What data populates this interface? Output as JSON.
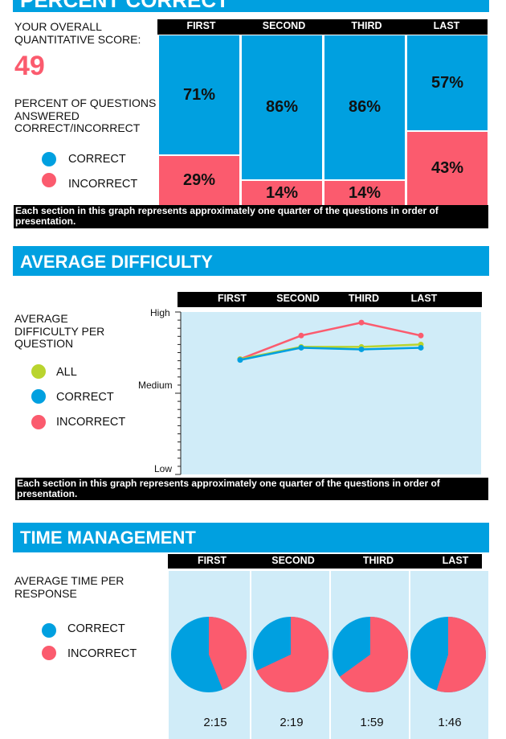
{
  "colors": {
    "blue": "#00a0e0",
    "red": "#fb5b6e",
    "lime": "#b9d42e",
    "panel": "#d0ecf8",
    "score": "#fb5b6e"
  },
  "percent_correct": {
    "banner_title": "PERCENT CORRECT",
    "score_label": "YOUR OVERALL QUANTITATIVE SCORE:",
    "score_value": "49",
    "questions_label": "PERCENT OF QUESTIONS ANSWERED CORRECT/INCORRECT",
    "legend": [
      {
        "label": "CORRECT",
        "color": "blue"
      },
      {
        "label": "INCORRECT",
        "color": "red"
      }
    ],
    "columns": [
      "FIRST",
      "SECOND",
      "THIRD",
      "LAST"
    ],
    "correct_labels": [
      "71%",
      "86%",
      "86%",
      "57%"
    ],
    "incorrect_labels": [
      "29%",
      "14%",
      "14%",
      "43%"
    ],
    "note": "Each section in this graph represents approximately one quarter of the questions in order of presentation."
  },
  "average_difficulty": {
    "banner_title": "AVERAGE DIFFICULTY",
    "label": "AVERAGE DIFFICULTY PER QUESTION",
    "legend": [
      {
        "label": "ALL",
        "color": "lime"
      },
      {
        "label": "CORRECT",
        "color": "blue"
      },
      {
        "label": "INCORRECT",
        "color": "red"
      }
    ],
    "columns": [
      "FIRST",
      "SECOND",
      "THIRD",
      "LAST"
    ],
    "y_labels": {
      "high": "High",
      "medium": "Medium",
      "low": "Low"
    },
    "note": "Each section in this graph represents approximately one quarter of the questions in order of presentation."
  },
  "time_management": {
    "banner_title": "TIME MANAGEMENT",
    "label": "AVERAGE TIME PER RESPONSE",
    "legend": [
      {
        "label": "CORRECT",
        "color": "blue"
      },
      {
        "label": "INCORRECT",
        "color": "red"
      }
    ],
    "columns": [
      "FIRST",
      "SECOND",
      "THIRD",
      "LAST"
    ],
    "times": [
      "2:15",
      "2:19",
      "1:59",
      "1:46"
    ]
  },
  "chart_data": [
    {
      "type": "bar",
      "stacked": true,
      "normalized": true,
      "categories": [
        "FIRST",
        "SECOND",
        "THIRD",
        "LAST"
      ],
      "series": [
        {
          "name": "CORRECT",
          "values": [
            71,
            86,
            86,
            57
          ]
        },
        {
          "name": "INCORRECT",
          "values": [
            29,
            14,
            14,
            43
          ]
        }
      ],
      "ylim": [
        0,
        100
      ]
    },
    {
      "type": "line",
      "categories": [
        "FIRST",
        "SECOND",
        "THIRD",
        "LAST"
      ],
      "y_scale": [
        "Low",
        "Medium",
        "High"
      ],
      "ylim": [
        0,
        1
      ],
      "series": [
        {
          "name": "ALL",
          "values": [
            0.71,
            0.785,
            0.785,
            0.8
          ]
        },
        {
          "name": "CORRECT",
          "values": [
            0.705,
            0.78,
            0.77,
            0.78
          ]
        },
        {
          "name": "INCORRECT",
          "values": [
            0.71,
            0.855,
            0.935,
            0.855
          ]
        }
      ]
    },
    {
      "type": "pie",
      "categories": [
        "FIRST",
        "SECOND",
        "THIRD",
        "LAST"
      ],
      "series": [
        {
          "name": "CORRECT",
          "values": [
            0.56,
            0.32,
            0.35,
            0.45
          ]
        },
        {
          "name": "INCORRECT",
          "values": [
            0.44,
            0.68,
            0.65,
            0.55
          ]
        }
      ]
    }
  ]
}
